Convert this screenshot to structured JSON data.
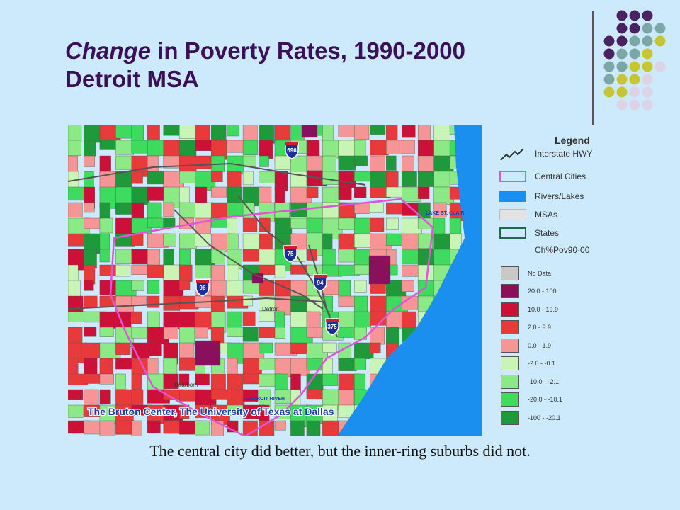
{
  "slide": {
    "title_italic": "Change",
    "title_rest": " in Poverty Rates, 1990-2000",
    "title_line2": "Detroit MSA",
    "caption": "The central city did better, but the inner-ring suburbs did not."
  },
  "map": {
    "labels": {
      "lake": "LAKE ST. CLAIR",
      "river": "DETROIT RIVER",
      "detroit": "Detroit",
      "dearborn": "Dearborn",
      "credit": "The Bruton Center, The University of Texas at Dallas"
    },
    "highways": [
      "696",
      "75",
      "94",
      "96",
      "375"
    ],
    "colors": {
      "water": "#1a8ff0",
      "central_city_border": "#e055d8",
      "no_data": "#c8c8c8",
      "class_20_100": "#8a0f5c",
      "class_10_19_9": "#cc1038",
      "class_2_9_9": "#e83a3a",
      "class_0_1_9": "#f59595",
      "class_m2_m0_1": "#c8f5b6",
      "class_m10_m2_1": "#8bea86",
      "class_m20_m10_1": "#3fdb5f",
      "class_m100_m20_1": "#1f9a3a"
    }
  },
  "legend": {
    "title": "Legend",
    "items": [
      {
        "label": "Interstate HWY",
        "icon": "interstate-line-icon"
      },
      {
        "label": "Central Cities",
        "color": "#e055d8"
      },
      {
        "label": "Rivers/Lakes",
        "color": "#1a8ff0"
      },
      {
        "label": "MSAs",
        "color": "#e3e3e3"
      },
      {
        "label": "States",
        "color": "#1d6b49"
      },
      {
        "label": "Ch%Pov90-00"
      }
    ],
    "classes": [
      {
        "label": "No Data",
        "color": "#c8c8c8"
      },
      {
        "label": "20.0 - 100",
        "color": "#8a0f5c"
      },
      {
        "label": "10.0 - 19.9",
        "color": "#cc1038"
      },
      {
        "label": "2.0 - 9.9",
        "color": "#e83a3a"
      },
      {
        "label": "0.0 - 1.9",
        "color": "#f59595"
      },
      {
        "label": "-2.0 - -0.1",
        "color": "#c8f5b6"
      },
      {
        "label": "-10.0 - -2.1",
        "color": "#8bea86"
      },
      {
        "label": "-20.0 - -10.1",
        "color": "#3fdb5f"
      },
      {
        "label": "-100 - -20.1",
        "color": "#1f9a3a"
      }
    ]
  },
  "decoration": {
    "dot_colors": [
      "#4a2161",
      "#7ba7a6",
      "#c8c532",
      "#dcd3e6"
    ]
  }
}
